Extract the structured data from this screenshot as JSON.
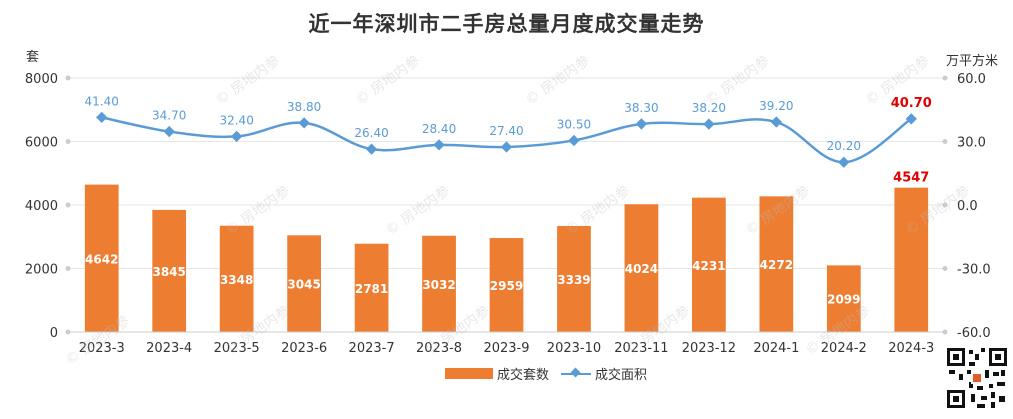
{
  "title": "近一年深圳市二手房总量月度成交量走势",
  "left_axis_unit": "套",
  "right_axis_unit": "万平方米",
  "watermark": "房地内参",
  "legend": {
    "bar": "成交套数",
    "line": "成交面积"
  },
  "colors": {
    "bar": "#ed7d31",
    "line": "#5b9bd5",
    "highlight": "#e00000",
    "label": "#5b9bd5",
    "grid": "#e6e6e6"
  },
  "chart_data": {
    "type": "bar+line",
    "title": "近一年深圳市二手房总量月度成交量走势",
    "categories": [
      "2023-3",
      "2023-4",
      "2023-5",
      "2023-6",
      "2023-7",
      "2023-8",
      "2023-9",
      "2023-10",
      "2023-11",
      "2023-12",
      "2024-1",
      "2024-2",
      "2024-3"
    ],
    "series": [
      {
        "name": "成交套数",
        "type": "bar",
        "axis": "left",
        "values": [
          4642,
          3845,
          3348,
          3045,
          2781,
          3032,
          2959,
          3339,
          4024,
          4231,
          4272,
          2099,
          4547
        ],
        "labels": [
          "4642",
          "3845",
          "3348",
          "3045",
          "2781",
          "3032",
          "2959",
          "3339",
          "4024",
          "4231",
          "4272",
          "2099",
          "4547"
        ]
      },
      {
        "name": "成交面积",
        "type": "line",
        "axis": "right",
        "values": [
          41.4,
          34.7,
          32.4,
          38.8,
          26.4,
          28.4,
          27.4,
          30.5,
          38.3,
          38.2,
          39.2,
          20.2,
          40.7
        ],
        "labels": [
          "41.40",
          "34.70",
          "32.40",
          "38.80",
          "26.40",
          "28.40",
          "27.40",
          "30.50",
          "38.30",
          "38.20",
          "39.20",
          "20.20",
          "40.70"
        ]
      }
    ],
    "y_left": {
      "ticks": [
        0,
        2000,
        4000,
        6000,
        8000
      ],
      "tick_labels": [
        "0",
        "2000",
        "4000",
        "6000",
        "8000"
      ],
      "range": [
        0,
        8000
      ]
    },
    "y_right": {
      "ticks": [
        -60,
        -30,
        0,
        30,
        60
      ],
      "tick_labels": [
        "-60.0",
        "-30.0",
        "0.0",
        "30.0",
        "60.0"
      ],
      "range": [
        -60,
        60
      ]
    },
    "highlight_last": true,
    "grid": true,
    "legend_position": "bottom-center"
  }
}
